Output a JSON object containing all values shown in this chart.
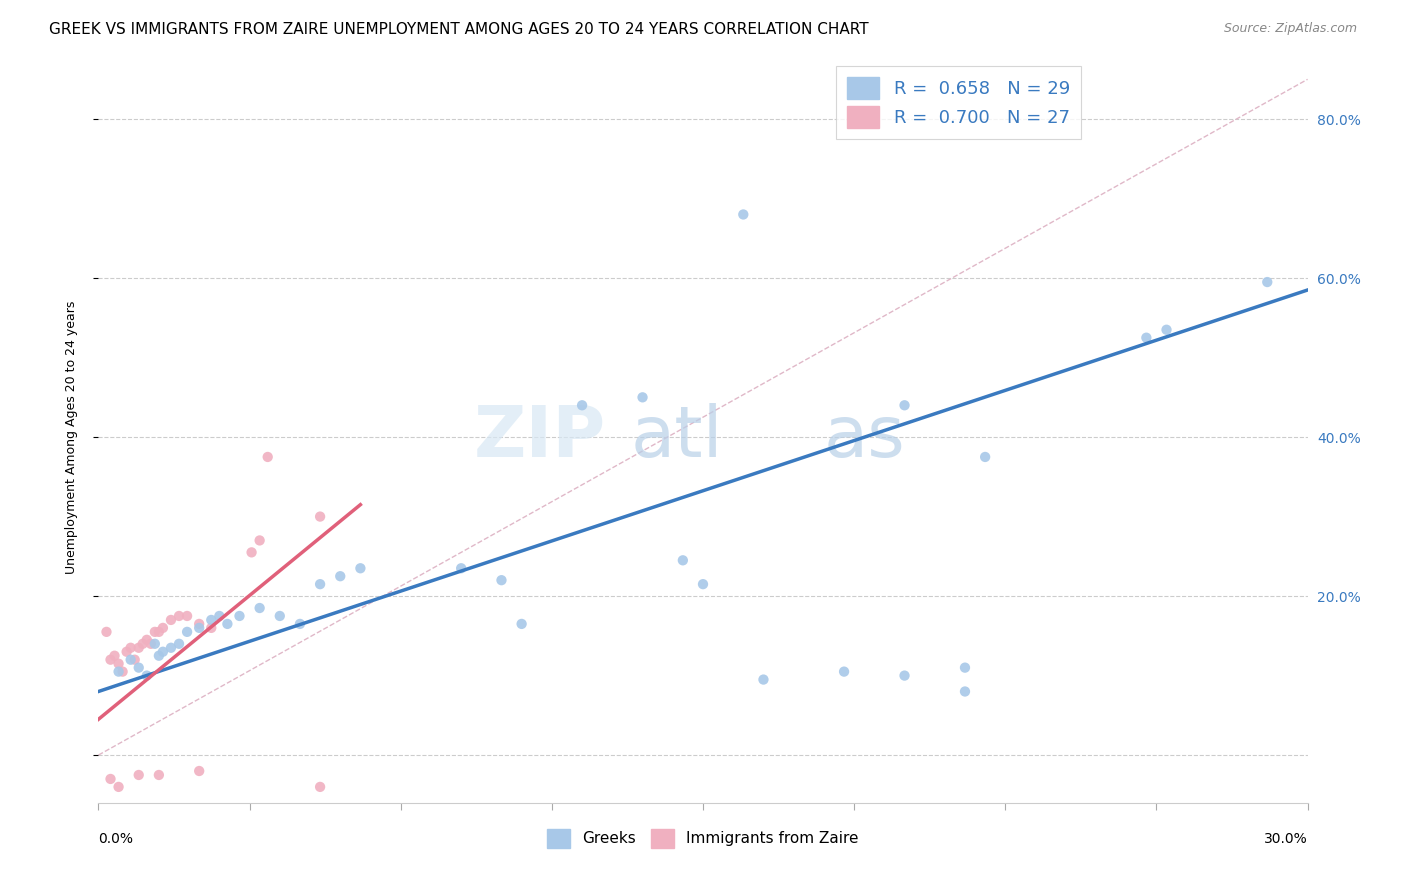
{
  "title": "GREEK VS IMMIGRANTS FROM ZAIRE UNEMPLOYMENT AMONG AGES 20 TO 24 YEARS CORRELATION CHART",
  "source": "Source: ZipAtlas.com",
  "ylabel": "Unemployment Among Ages 20 to 24 years",
  "xmin": 0.0,
  "xmax": 0.3,
  "ymin": -0.06,
  "ymax": 0.86,
  "yticks": [
    0.0,
    0.2,
    0.4,
    0.6,
    0.8
  ],
  "ytick_labels": [
    "",
    "20.0%",
    "40.0%",
    "60.0%",
    "80.0%"
  ],
  "greeks_scatter": [
    [
      0.005,
      0.105
    ],
    [
      0.008,
      0.12
    ],
    [
      0.01,
      0.11
    ],
    [
      0.012,
      0.1
    ],
    [
      0.014,
      0.14
    ],
    [
      0.015,
      0.125
    ],
    [
      0.016,
      0.13
    ],
    [
      0.018,
      0.135
    ],
    [
      0.02,
      0.14
    ],
    [
      0.022,
      0.155
    ],
    [
      0.025,
      0.16
    ],
    [
      0.028,
      0.17
    ],
    [
      0.03,
      0.175
    ],
    [
      0.032,
      0.165
    ],
    [
      0.035,
      0.175
    ],
    [
      0.04,
      0.185
    ],
    [
      0.045,
      0.175
    ],
    [
      0.05,
      0.165
    ],
    [
      0.055,
      0.215
    ],
    [
      0.06,
      0.225
    ],
    [
      0.065,
      0.235
    ],
    [
      0.09,
      0.235
    ],
    [
      0.1,
      0.22
    ],
    [
      0.105,
      0.165
    ],
    [
      0.12,
      0.44
    ],
    [
      0.135,
      0.45
    ],
    [
      0.145,
      0.245
    ],
    [
      0.15,
      0.215
    ],
    [
      0.165,
      0.095
    ],
    [
      0.185,
      0.105
    ],
    [
      0.2,
      0.1
    ],
    [
      0.16,
      0.68
    ],
    [
      0.2,
      0.44
    ],
    [
      0.22,
      0.375
    ],
    [
      0.215,
      0.11
    ],
    [
      0.26,
      0.525
    ],
    [
      0.265,
      0.535
    ],
    [
      0.215,
      0.08
    ],
    [
      0.29,
      0.595
    ]
  ],
  "zaire_scatter": [
    [
      0.002,
      0.155
    ],
    [
      0.003,
      0.12
    ],
    [
      0.004,
      0.125
    ],
    [
      0.005,
      0.115
    ],
    [
      0.006,
      0.105
    ],
    [
      0.007,
      0.13
    ],
    [
      0.008,
      0.135
    ],
    [
      0.009,
      0.12
    ],
    [
      0.01,
      0.135
    ],
    [
      0.011,
      0.14
    ],
    [
      0.012,
      0.145
    ],
    [
      0.013,
      0.14
    ],
    [
      0.014,
      0.155
    ],
    [
      0.015,
      0.155
    ],
    [
      0.016,
      0.16
    ],
    [
      0.018,
      0.17
    ],
    [
      0.02,
      0.175
    ],
    [
      0.022,
      0.175
    ],
    [
      0.025,
      0.165
    ],
    [
      0.028,
      0.16
    ],
    [
      0.038,
      0.255
    ],
    [
      0.04,
      0.27
    ],
    [
      0.042,
      0.375
    ],
    [
      0.055,
      0.3
    ],
    [
      0.003,
      -0.03
    ],
    [
      0.005,
      -0.04
    ],
    [
      0.01,
      -0.025
    ],
    [
      0.015,
      -0.025
    ],
    [
      0.025,
      -0.02
    ],
    [
      0.055,
      -0.04
    ]
  ],
  "greeks_color": "#a8c8e8",
  "zaire_color": "#f0b0c0",
  "greeks_trend_x": [
    0.0,
    0.3
  ],
  "greeks_trend_y": [
    0.08,
    0.585
  ],
  "zaire_trend_x": [
    0.0,
    0.065
  ],
  "zaire_trend_y": [
    0.045,
    0.315
  ],
  "diag_line_x": [
    0.0,
    0.3
  ],
  "diag_line_y": [
    0.0,
    0.85
  ],
  "diag_color": "#e0b8c8",
  "title_fontsize": 11,
  "source_fontsize": 9,
  "axis_label_fontsize": 9
}
